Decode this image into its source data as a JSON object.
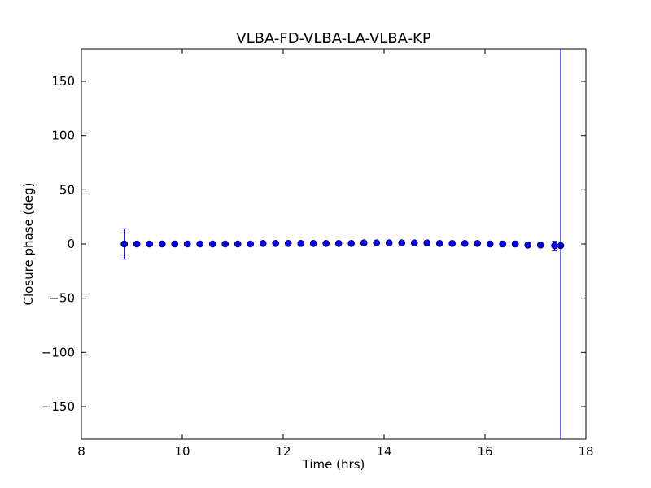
{
  "chart_data": {
    "type": "scatter",
    "title": "VLBA-FD-VLBA-LA-VLBA-KP",
    "xlabel": "Time (hrs)",
    "ylabel": "Closure phase (deg)",
    "xlim": [
      8,
      18
    ],
    "ylim": [
      -180,
      180
    ],
    "xticks": [
      8,
      10,
      12,
      14,
      16,
      18
    ],
    "xtick_labels": [
      "8",
      "10",
      "12",
      "14",
      "16",
      "18"
    ],
    "yticks": [
      -150,
      -100,
      -50,
      0,
      50,
      100,
      150
    ],
    "ytick_labels": [
      "−150",
      "−100",
      "−50",
      "0",
      "50",
      "100",
      "150"
    ],
    "grid": false,
    "legend": false,
    "color": "#0000ff",
    "series": [
      {
        "x": [
          8.85,
          9.1,
          9.35,
          9.6,
          9.85,
          10.1,
          10.35,
          10.6,
          10.85,
          11.1,
          11.35,
          11.6,
          11.85,
          12.1,
          12.35,
          12.6,
          12.85,
          13.1,
          13.35,
          13.6,
          13.85,
          14.1,
          14.35,
          14.6,
          14.85,
          15.1,
          15.35,
          15.6,
          15.85,
          16.1,
          16.35,
          16.6,
          16.85,
          17.1,
          17.38,
          17.5
        ],
        "y": [
          0,
          0,
          0,
          0,
          0,
          0,
          0,
          0,
          0,
          0,
          0,
          0.5,
          0.5,
          0.5,
          0.5,
          0.5,
          0.5,
          0.5,
          0.5,
          1,
          1,
          1,
          1,
          1,
          1,
          0.5,
          0.5,
          0.5,
          0.5,
          0,
          0,
          0,
          -1,
          -1,
          -1.5,
          -1.5
        ],
        "yerr": [
          14,
          0,
          0,
          0,
          0,
          0,
          0,
          0,
          0,
          0,
          0,
          0,
          0,
          0,
          0,
          0,
          0,
          0,
          0,
          0,
          0,
          0,
          0,
          0,
          0,
          0,
          0,
          0,
          0,
          0,
          0,
          0,
          0,
          0,
          4,
          200
        ]
      }
    ]
  }
}
